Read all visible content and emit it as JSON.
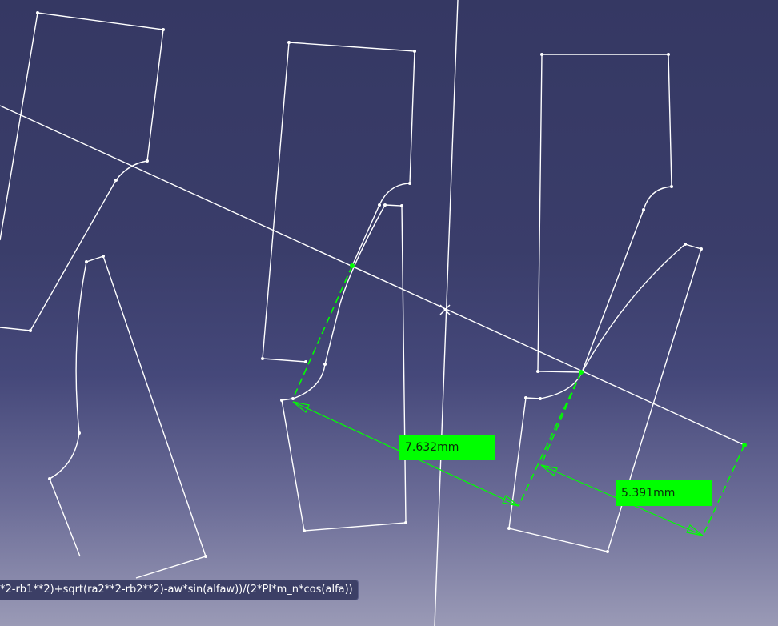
{
  "dimensions": [
    {
      "value_label": "7.632mm"
    },
    {
      "value_label": "5.391mm"
    }
  ],
  "formula": {
    "text": "*2-rb1**2)+sqrt(ra2**2-rb2**2)-aw*sin(alfaw))/(2*PI*m_n*cos(alfa))"
  },
  "colors": {
    "background_top": "#353863",
    "background_bottom": "#9a9ab6",
    "geometry": "#ffffff",
    "dimension": "#00ff00"
  }
}
